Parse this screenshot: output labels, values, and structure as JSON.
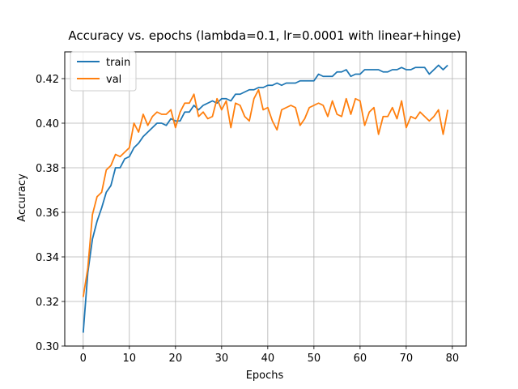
{
  "chart_data": {
    "type": "line",
    "title": "Accuracy vs. epochs (lambda=0.1, lr=0.0001 with linear+hinge)",
    "xlabel": "Epochs",
    "ylabel": "Accuracy",
    "xlim": [
      -4,
      83
    ],
    "ylim": [
      0.3,
      0.432
    ],
    "xticks": [
      0,
      10,
      20,
      30,
      40,
      50,
      60,
      70,
      80
    ],
    "yticks": [
      0.3,
      0.32,
      0.34,
      0.36,
      0.38,
      0.4,
      0.42
    ],
    "ytick_labels": [
      "0.30",
      "0.32",
      "0.34",
      "0.36",
      "0.38",
      "0.40",
      "0.42"
    ],
    "grid": true,
    "legend_position": "top-left",
    "series": [
      {
        "name": "train",
        "color": "#1f77b4",
        "values": [
          0.306,
          0.333,
          0.348,
          0.356,
          0.362,
          0.369,
          0.372,
          0.38,
          0.38,
          0.384,
          0.385,
          0.389,
          0.391,
          0.394,
          0.396,
          0.398,
          0.4,
          0.4,
          0.399,
          0.402,
          0.401,
          0.401,
          0.405,
          0.405,
          0.408,
          0.406,
          0.408,
          0.409,
          0.41,
          0.409,
          0.411,
          0.411,
          0.41,
          0.413,
          0.413,
          0.414,
          0.415,
          0.415,
          0.416,
          0.416,
          0.417,
          0.417,
          0.418,
          0.417,
          0.418,
          0.418,
          0.418,
          0.419,
          0.419,
          0.419,
          0.419,
          0.422,
          0.421,
          0.421,
          0.421,
          0.423,
          0.423,
          0.424,
          0.421,
          0.422,
          0.422,
          0.424,
          0.424,
          0.424,
          0.424,
          0.423,
          0.423,
          0.424,
          0.424,
          0.425,
          0.424,
          0.424,
          0.425,
          0.425,
          0.425,
          0.422,
          0.424,
          0.426,
          0.424,
          0.426
        ]
      },
      {
        "name": "val",
        "color": "#ff7f0e",
        "values": [
          0.322,
          0.335,
          0.359,
          0.367,
          0.369,
          0.379,
          0.381,
          0.386,
          0.385,
          0.387,
          0.389,
          0.4,
          0.396,
          0.404,
          0.399,
          0.403,
          0.405,
          0.404,
          0.404,
          0.406,
          0.398,
          0.405,
          0.409,
          0.409,
          0.413,
          0.403,
          0.405,
          0.402,
          0.403,
          0.411,
          0.406,
          0.41,
          0.398,
          0.409,
          0.408,
          0.403,
          0.401,
          0.411,
          0.415,
          0.406,
          0.407,
          0.401,
          0.397,
          0.406,
          0.407,
          0.408,
          0.407,
          0.399,
          0.402,
          0.407,
          0.408,
          0.409,
          0.408,
          0.403,
          0.41,
          0.404,
          0.403,
          0.411,
          0.404,
          0.411,
          0.41,
          0.399,
          0.405,
          0.407,
          0.395,
          0.403,
          0.403,
          0.407,
          0.402,
          0.41,
          0.398,
          0.403,
          0.402,
          0.405,
          0.403,
          0.401,
          0.403,
          0.406,
          0.395,
          0.406
        ]
      }
    ]
  }
}
